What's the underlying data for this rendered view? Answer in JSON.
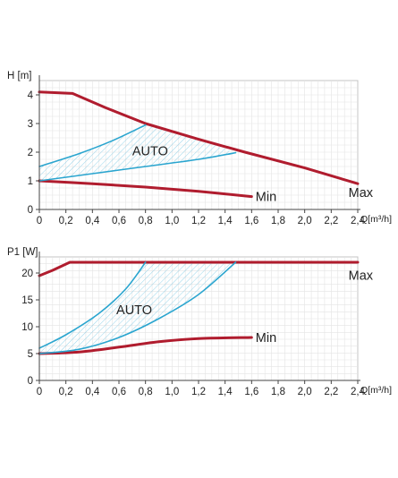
{
  "chart_data": [
    {
      "type": "line",
      "title": "",
      "ylabel": "H [m]",
      "xlabel": "Q[m³/h]",
      "xlim": [
        0,
        2.4
      ],
      "ylim": [
        0,
        4.5
      ],
      "x_ticks": [
        0,
        0.2,
        0.4,
        0.6,
        0.8,
        1.0,
        1.2,
        1.4,
        1.6,
        1.8,
        2.0,
        2.2,
        2.4
      ],
      "x_tick_labels": [
        "0",
        "0,2",
        "0,4",
        "0,6",
        "0,8",
        "1,0",
        "1,2",
        "1,4",
        "1,6",
        "1,8",
        "2,0",
        "2,2",
        "2,4"
      ],
      "y_ticks": [
        0,
        1,
        2,
        3,
        4
      ],
      "y_tick_labels": [
        "0",
        "1",
        "2",
        "3",
        "4"
      ],
      "grid": true,
      "series": [
        {
          "name": "Max",
          "color": "#b01c2e",
          "points": [
            [
              0,
              4.1
            ],
            [
              0.25,
              4.05
            ],
            [
              0.5,
              3.55
            ],
            [
              0.8,
              3.0
            ],
            [
              1.2,
              2.45
            ],
            [
              1.55,
              2.0
            ],
            [
              2.0,
              1.45
            ],
            [
              2.4,
              0.9
            ]
          ]
        },
        {
          "name": "Min",
          "color": "#b01c2e",
          "points": [
            [
              0,
              1.0
            ],
            [
              0.4,
              0.9
            ],
            [
              0.8,
              0.78
            ],
            [
              1.2,
              0.63
            ],
            [
              1.6,
              0.45
            ]
          ]
        },
        {
          "name": "",
          "color": "#2aa5cf",
          "points": [
            [
              0,
              1.5
            ],
            [
              0.3,
              1.95
            ],
            [
              0.55,
              2.4
            ],
            [
              0.8,
              2.95
            ]
          ]
        },
        {
          "name": "",
          "color": "#2aa5cf",
          "points": [
            [
              0,
              1.0
            ],
            [
              0.4,
              1.25
            ],
            [
              0.8,
              1.5
            ],
            [
              1.2,
              1.75
            ],
            [
              1.48,
              1.98
            ]
          ]
        }
      ],
      "annotations": [
        {
          "text": "AUTO",
          "x": 0.7,
          "y": 2.05
        },
        {
          "text": "Min",
          "x": 1.63,
          "y": 0.45
        },
        {
          "text": "Max",
          "x": 2.33,
          "y": 0.6
        }
      ]
    },
    {
      "type": "line",
      "title": "",
      "ylabel": "P1 [W]",
      "xlabel": "Q[m³/h]",
      "xlim": [
        0,
        2.4
      ],
      "ylim": [
        0,
        23
      ],
      "x_ticks": [
        0,
        0.2,
        0.4,
        0.6,
        0.8,
        1.0,
        1.2,
        1.4,
        1.6,
        1.8,
        2.0,
        2.2,
        2.4
      ],
      "x_tick_labels": [
        "0",
        "0,2",
        "0,4",
        "0,6",
        "0,8",
        "1,0",
        "1,2",
        "1,4",
        "1,6",
        "1,8",
        "2,0",
        "2,2",
        "2,4"
      ],
      "y_ticks": [
        0,
        5,
        10,
        15,
        20
      ],
      "y_tick_labels": [
        "0",
        "5",
        "10",
        "15",
        "20"
      ],
      "grid": true,
      "series": [
        {
          "name": "Max",
          "color": "#b01c2e",
          "points": [
            [
              0,
              19.5
            ],
            [
              0.1,
              20.5
            ],
            [
              0.23,
              22
            ],
            [
              2.4,
              22
            ]
          ]
        },
        {
          "name": "Min",
          "color": "#b01c2e",
          "points": [
            [
              0,
              5.0
            ],
            [
              0.3,
              5.3
            ],
            [
              0.6,
              6.2
            ],
            [
              0.9,
              7.2
            ],
            [
              1.2,
              7.8
            ],
            [
              1.6,
              8.0
            ]
          ]
        },
        {
          "name": "",
          "color": "#2aa5cf",
          "points": [
            [
              0,
              6.0
            ],
            [
              0.2,
              8.5
            ],
            [
              0.45,
              12.5
            ],
            [
              0.65,
              17.0
            ],
            [
              0.8,
              22.0
            ]
          ]
        },
        {
          "name": "",
          "color": "#2aa5cf",
          "points": [
            [
              0,
              5.0
            ],
            [
              0.3,
              5.8
            ],
            [
              0.6,
              8.0
            ],
            [
              0.9,
              11.5
            ],
            [
              1.2,
              16.0
            ],
            [
              1.48,
              22.0
            ]
          ]
        }
      ],
      "annotations": [
        {
          "text": "AUTO",
          "x": 0.58,
          "y": 13.2
        },
        {
          "text": "Min",
          "x": 1.63,
          "y": 8.0
        },
        {
          "text": "Max",
          "x": 2.33,
          "y": 19.6
        }
      ]
    }
  ]
}
